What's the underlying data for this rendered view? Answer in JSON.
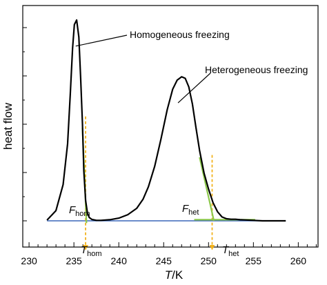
{
  "chart_data": {
    "type": "line",
    "title": "",
    "xlabel": {
      "italic": "T",
      "rest": "/K"
    },
    "ylabel": "heat flow",
    "xlim": [
      229.3,
      262.2
    ],
    "ylim": [
      0,
      10
    ],
    "x_ticks": [
      230,
      235,
      240,
      245,
      250,
      255,
      260
    ],
    "x_minor_step": 1,
    "y_ticks": [
      1,
      3,
      5,
      7,
      9
    ],
    "y_labels_shown": false,
    "grid": false,
    "legend": "none",
    "colors": {
      "curve": "#000000",
      "baseline": "#3a66b8",
      "tangent": "#8cc84b",
      "onset": "#f2b21b"
    },
    "series": [
      {
        "role": "thermogram",
        "x": [
          232.0,
          233.0,
          233.8,
          234.3,
          234.6,
          234.85,
          235.05,
          235.3,
          235.55,
          235.75,
          235.95,
          236.1,
          236.3,
          236.5,
          236.7,
          237.0,
          237.5,
          238.0,
          239.0,
          240.0,
          241.0,
          242.0,
          242.7,
          243.3,
          244.0,
          244.7,
          245.4,
          246.0,
          246.5,
          247.0,
          247.4,
          247.8,
          248.2,
          248.6,
          249.0,
          249.5,
          250.0,
          250.5,
          251.0,
          251.5,
          252.0,
          252.5,
          253.0,
          253.5,
          254.0,
          255.0,
          256.0,
          257.0,
          258.0,
          258.6
        ],
        "y": [
          0.03,
          0.45,
          1.6,
          3.4,
          5.6,
          7.6,
          8.65,
          8.85,
          8.1,
          6.3,
          4.3,
          2.2,
          0.9,
          0.35,
          0.15,
          0.06,
          0.02,
          0.02,
          0.05,
          0.12,
          0.27,
          0.55,
          0.95,
          1.5,
          2.4,
          3.6,
          4.9,
          5.8,
          6.2,
          6.35,
          6.28,
          5.9,
          5.15,
          4.1,
          3.1,
          2.1,
          1.4,
          0.8,
          0.4,
          0.17,
          0.09,
          0.07,
          0.07,
          0.05,
          0.04,
          0.02,
          0.0,
          0.0,
          0.0,
          0.0
        ]
      }
    ],
    "baseline": {
      "x": [
        232.0,
        258.6
      ],
      "y": [
        0.0,
        0.0
      ]
    },
    "tangents": [
      {
        "name": "hom",
        "x": [
          235.95,
          236.4
        ],
        "y": [
          4.1,
          -0.1
        ]
      },
      {
        "name": "het",
        "x": [
          249.0,
          250.6
        ],
        "y": [
          2.8,
          0.0
        ]
      },
      {
        "name": "het-baseline",
        "x": [
          248.4,
          255.2
        ],
        "y": [
          0.05,
          0.05
        ]
      }
    ],
    "onset_markers": [
      {
        "name": "hom",
        "x": 236.3,
        "y_top": 4.6
      },
      {
        "name": "het",
        "x": 250.4,
        "y_top": 2.9
      }
    ],
    "annotations": [
      {
        "id": "homogeneous",
        "text": "Homogeneous freezing",
        "target_x": 235.2,
        "target_y": 7.7
      },
      {
        "id": "heterogeneous",
        "text": "Heterogeneous freezing",
        "target_x": 246.6,
        "target_y": 5.2
      }
    ],
    "curve_labels": [
      {
        "id": "f_hom",
        "main": "F",
        "sub": "hom"
      },
      {
        "id": "f_het",
        "main": "F",
        "sub": "het"
      }
    ],
    "axis_markers": [
      {
        "id": "t_hom",
        "main": "T",
        "sub": "hom",
        "x": 236.3
      },
      {
        "id": "t_het",
        "main": "T",
        "sub": "het",
        "x": 250.4
      }
    ]
  }
}
